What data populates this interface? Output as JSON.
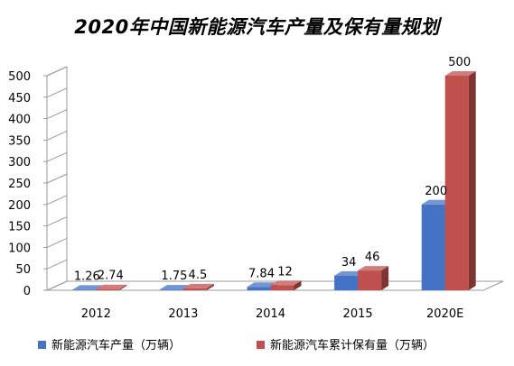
{
  "chart_data": {
    "type": "bar",
    "title": "2020年中国新能源汽车产量及保有量规划",
    "categories": [
      "2012",
      "2013",
      "2014",
      "2015",
      "2020E"
    ],
    "series": [
      {
        "name": "新能源汽车产量（万辆）",
        "values": [
          1.26,
          1.75,
          7.84,
          34,
          200
        ],
        "labels": [
          "1.26",
          "1.75",
          "7.84",
          "34",
          "200"
        ],
        "color": "#4472C4"
      },
      {
        "name": "新能源汽车累计保有量（万辆）",
        "values": [
          2.74,
          4.5,
          12,
          46,
          500
        ],
        "labels": [
          "2.74",
          "4.5",
          "12",
          "46",
          "500"
        ],
        "color": "#C0504D"
      }
    ],
    "yticks": [
      "0",
      "50",
      "100",
      "150",
      "200",
      "250",
      "300",
      "350",
      "400",
      "450",
      "500"
    ],
    "ylim": [
      0,
      500
    ],
    "grid": false,
    "legend": "bottom",
    "three_d": true
  }
}
